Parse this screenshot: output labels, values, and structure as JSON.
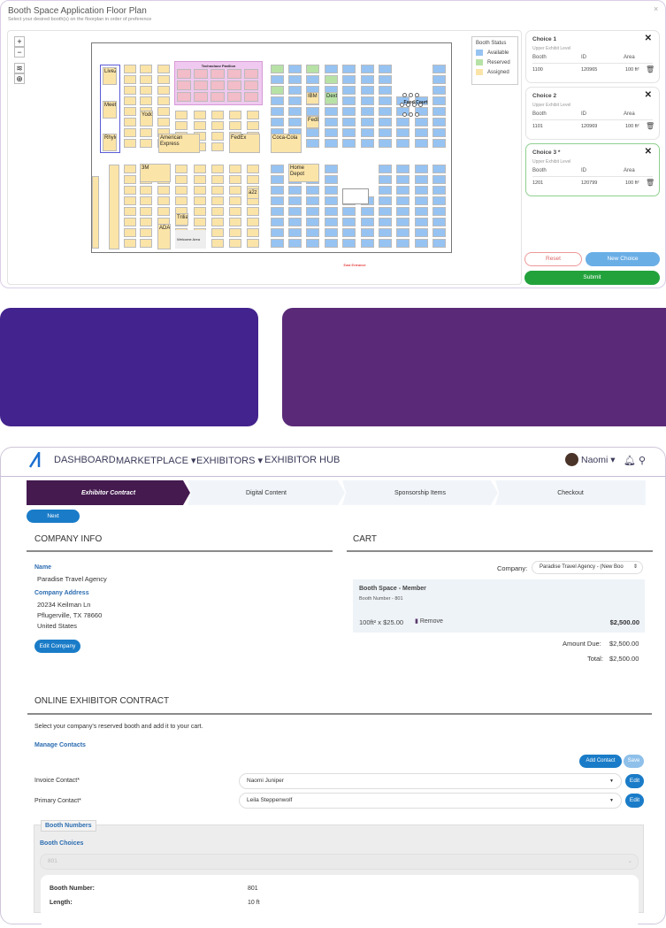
{
  "floorplan": {
    "title": "Booth Space Application Floor Plan",
    "subtitle": "Select your desired booth(s) on the floorplan in order of preference",
    "close_icon": "×",
    "controls": {
      "zoom_in": "+",
      "zoom_out": "−",
      "layers_icon": "layers-icon",
      "locate_icon": "crosshair-icon"
    },
    "legend": {
      "title": "Booth Status",
      "items": [
        {
          "label": "Available",
          "color": "#96c3f2"
        },
        {
          "label": "Reserved",
          "color": "#b7e2a6"
        },
        {
          "label": "Assigned",
          "color": "#fbe4a8"
        }
      ]
    },
    "labels": {
      "tech_pavilion": "Technology Pavilion",
      "food_court": "Food Court",
      "east_entrance": "East Entrance",
      "welcome": "Welcome Area"
    },
    "exhibitors": [
      "LiveZ",
      "Meetz",
      "Rhyloo",
      "Yodo",
      "American Express",
      "FedEx",
      "Coca-Cola",
      "IBM",
      "Dexter",
      "FedEx",
      "3M",
      "Home Depot",
      "a2z",
      "Trilia",
      "ADA",
      "Weezzy"
    ]
  },
  "choices": [
    {
      "title": "Choice 1",
      "level": "Upper Exhibit Level",
      "booth": "1100",
      "id": "120965",
      "area": "100 ft²"
    },
    {
      "title": "Choice 2",
      "level": "Upper Exhibit Level",
      "booth": "1101",
      "id": "120969",
      "area": "100 ft²"
    },
    {
      "title": "Choice 3 *",
      "level": "Upper Exhibit Level",
      "booth": "1201",
      "id": "120799",
      "area": "100 ft²"
    }
  ],
  "choice_headers": {
    "booth": "Booth",
    "id": "ID",
    "area": "Area"
  },
  "choice_buttons": {
    "reset": "Reset",
    "new_choice": "New Choice",
    "submit": "Submit"
  },
  "nav": {
    "items": [
      "DASHBOARD",
      "MARKETPLACE ▾",
      "EXHIBITORS ▾",
      "EXHIBITOR HUB"
    ],
    "user": "Naomi ▾"
  },
  "steps": [
    "Exhibitor Contract",
    "Digital Content",
    "Sponsorship Items",
    "Checkout"
  ],
  "next": "Next",
  "company": {
    "heading": "COMPANY INFO",
    "name_label": "Name",
    "name": "Paradise Travel Agency",
    "address_label": "Company Address",
    "address": [
      "20234 Keilman Ln",
      "Pflugerville, TX 78660",
      "United States"
    ],
    "edit": "Edit Company"
  },
  "cart": {
    "heading": "CART",
    "company_label": "Company:",
    "company_value": "Paradise Travel Agency - (New Boo",
    "item_title": "Booth Space - Member",
    "item_sub": "Booth Number - 801",
    "qty": "100ft² x $25.00",
    "remove": "Remove",
    "item_price": "$2,500.00",
    "amount_due_label": "Amount Due:",
    "amount_due": "$2,500.00",
    "total_label": "Total:",
    "total": "$2,500.00"
  },
  "contract": {
    "heading": "ONLINE EXHIBITOR CONTRACT",
    "intro": "Select your company's reserved booth and add it to your cart.",
    "manage": "Manage Contacts",
    "add_contact": "Add Contact",
    "save": "Save",
    "invoice_label": "Invoice Contact*",
    "invoice_value": "Naomi Juniper",
    "primary_label": "Primary Contact*",
    "primary_value": "Leila Steppenwolf",
    "edit": "Edit",
    "booth_numbers": "Booth Numbers",
    "booth_choices": "Booth Choices",
    "booth_choice_value": "801",
    "booth_number_label": "Booth Number:",
    "booth_number": "801",
    "length_label": "Length:",
    "length": "10 ft"
  }
}
